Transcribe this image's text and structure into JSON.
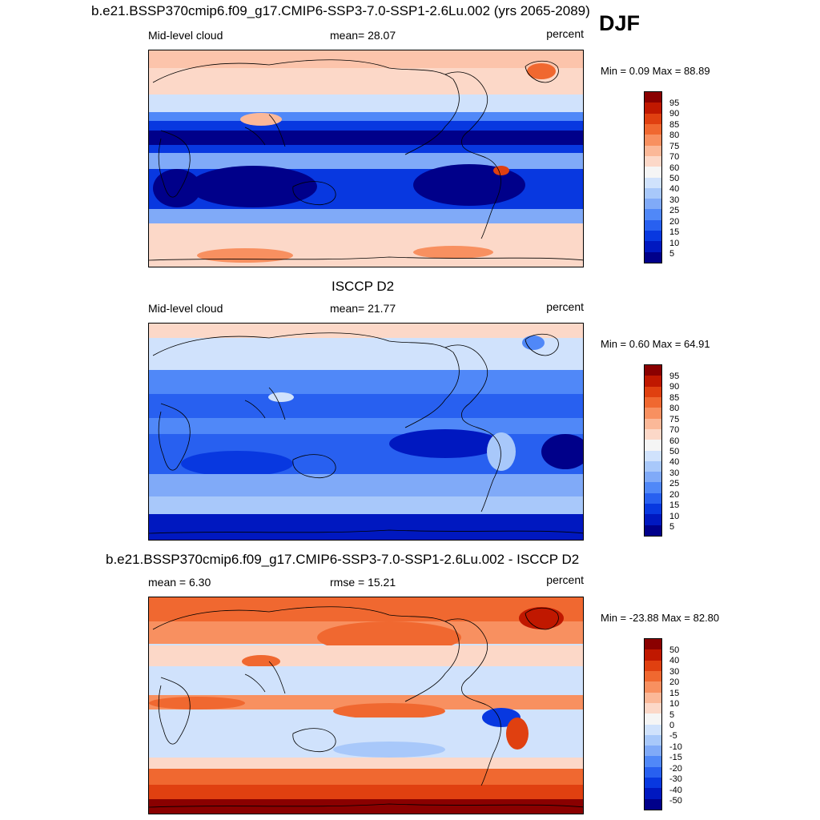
{
  "season": "DJF",
  "colors": {
    "scale": [
      "#00008a",
      "#0018c0",
      "#0838e0",
      "#2860f0",
      "#5088f8",
      "#80aaf8",
      "#a8c8fa",
      "#d0e2fc",
      "#f5f5f5",
      "#fcd8c8",
      "#fbb898",
      "#f89060",
      "#f06830",
      "#e04010",
      "#c01800",
      "#8a0000"
    ],
    "land_outline": "#000000"
  },
  "panels": [
    {
      "title": "b.e21.BSSP370cmip6.f09_g17.CMIP6-SSP3-7.0-SSP1-2.6Lu.002 (yrs 2065-2089)",
      "left_label": "Mid-level cloud",
      "center_label": "mean=  28.07",
      "right_label": "percent",
      "minmax": "Min =   0.09 Max =  88.89",
      "colorbar_ticks": [
        "95",
        "90",
        "85",
        "80",
        "75",
        "70",
        "60",
        "50",
        "40",
        "30",
        "25",
        "20",
        "15",
        "10",
        "5"
      ]
    },
    {
      "title": "ISCCP D2",
      "left_label": "Mid-level cloud",
      "center_label": "mean=  21.77",
      "right_label": "percent",
      "minmax": "Min =   0.60 Max =  64.91",
      "colorbar_ticks": [
        "95",
        "90",
        "85",
        "80",
        "75",
        "70",
        "60",
        "50",
        "40",
        "30",
        "25",
        "20",
        "15",
        "10",
        "5"
      ]
    },
    {
      "title": "b.e21.BSSP370cmip6.f09_g17.CMIP6-SSP3-7.0-SSP1-2.6Lu.002 - ISCCP D2",
      "left_label": "mean =   6.30",
      "center_label": "rmse =  15.21",
      "right_label": "percent",
      "minmax": "Min = -23.88 Max =  82.80",
      "colorbar_ticks": [
        "50",
        "40",
        "30",
        "20",
        "15",
        "10",
        "5",
        "0",
        "-5",
        "-10",
        "-15",
        "-20",
        "-30",
        "-40",
        "-50"
      ]
    }
  ]
}
